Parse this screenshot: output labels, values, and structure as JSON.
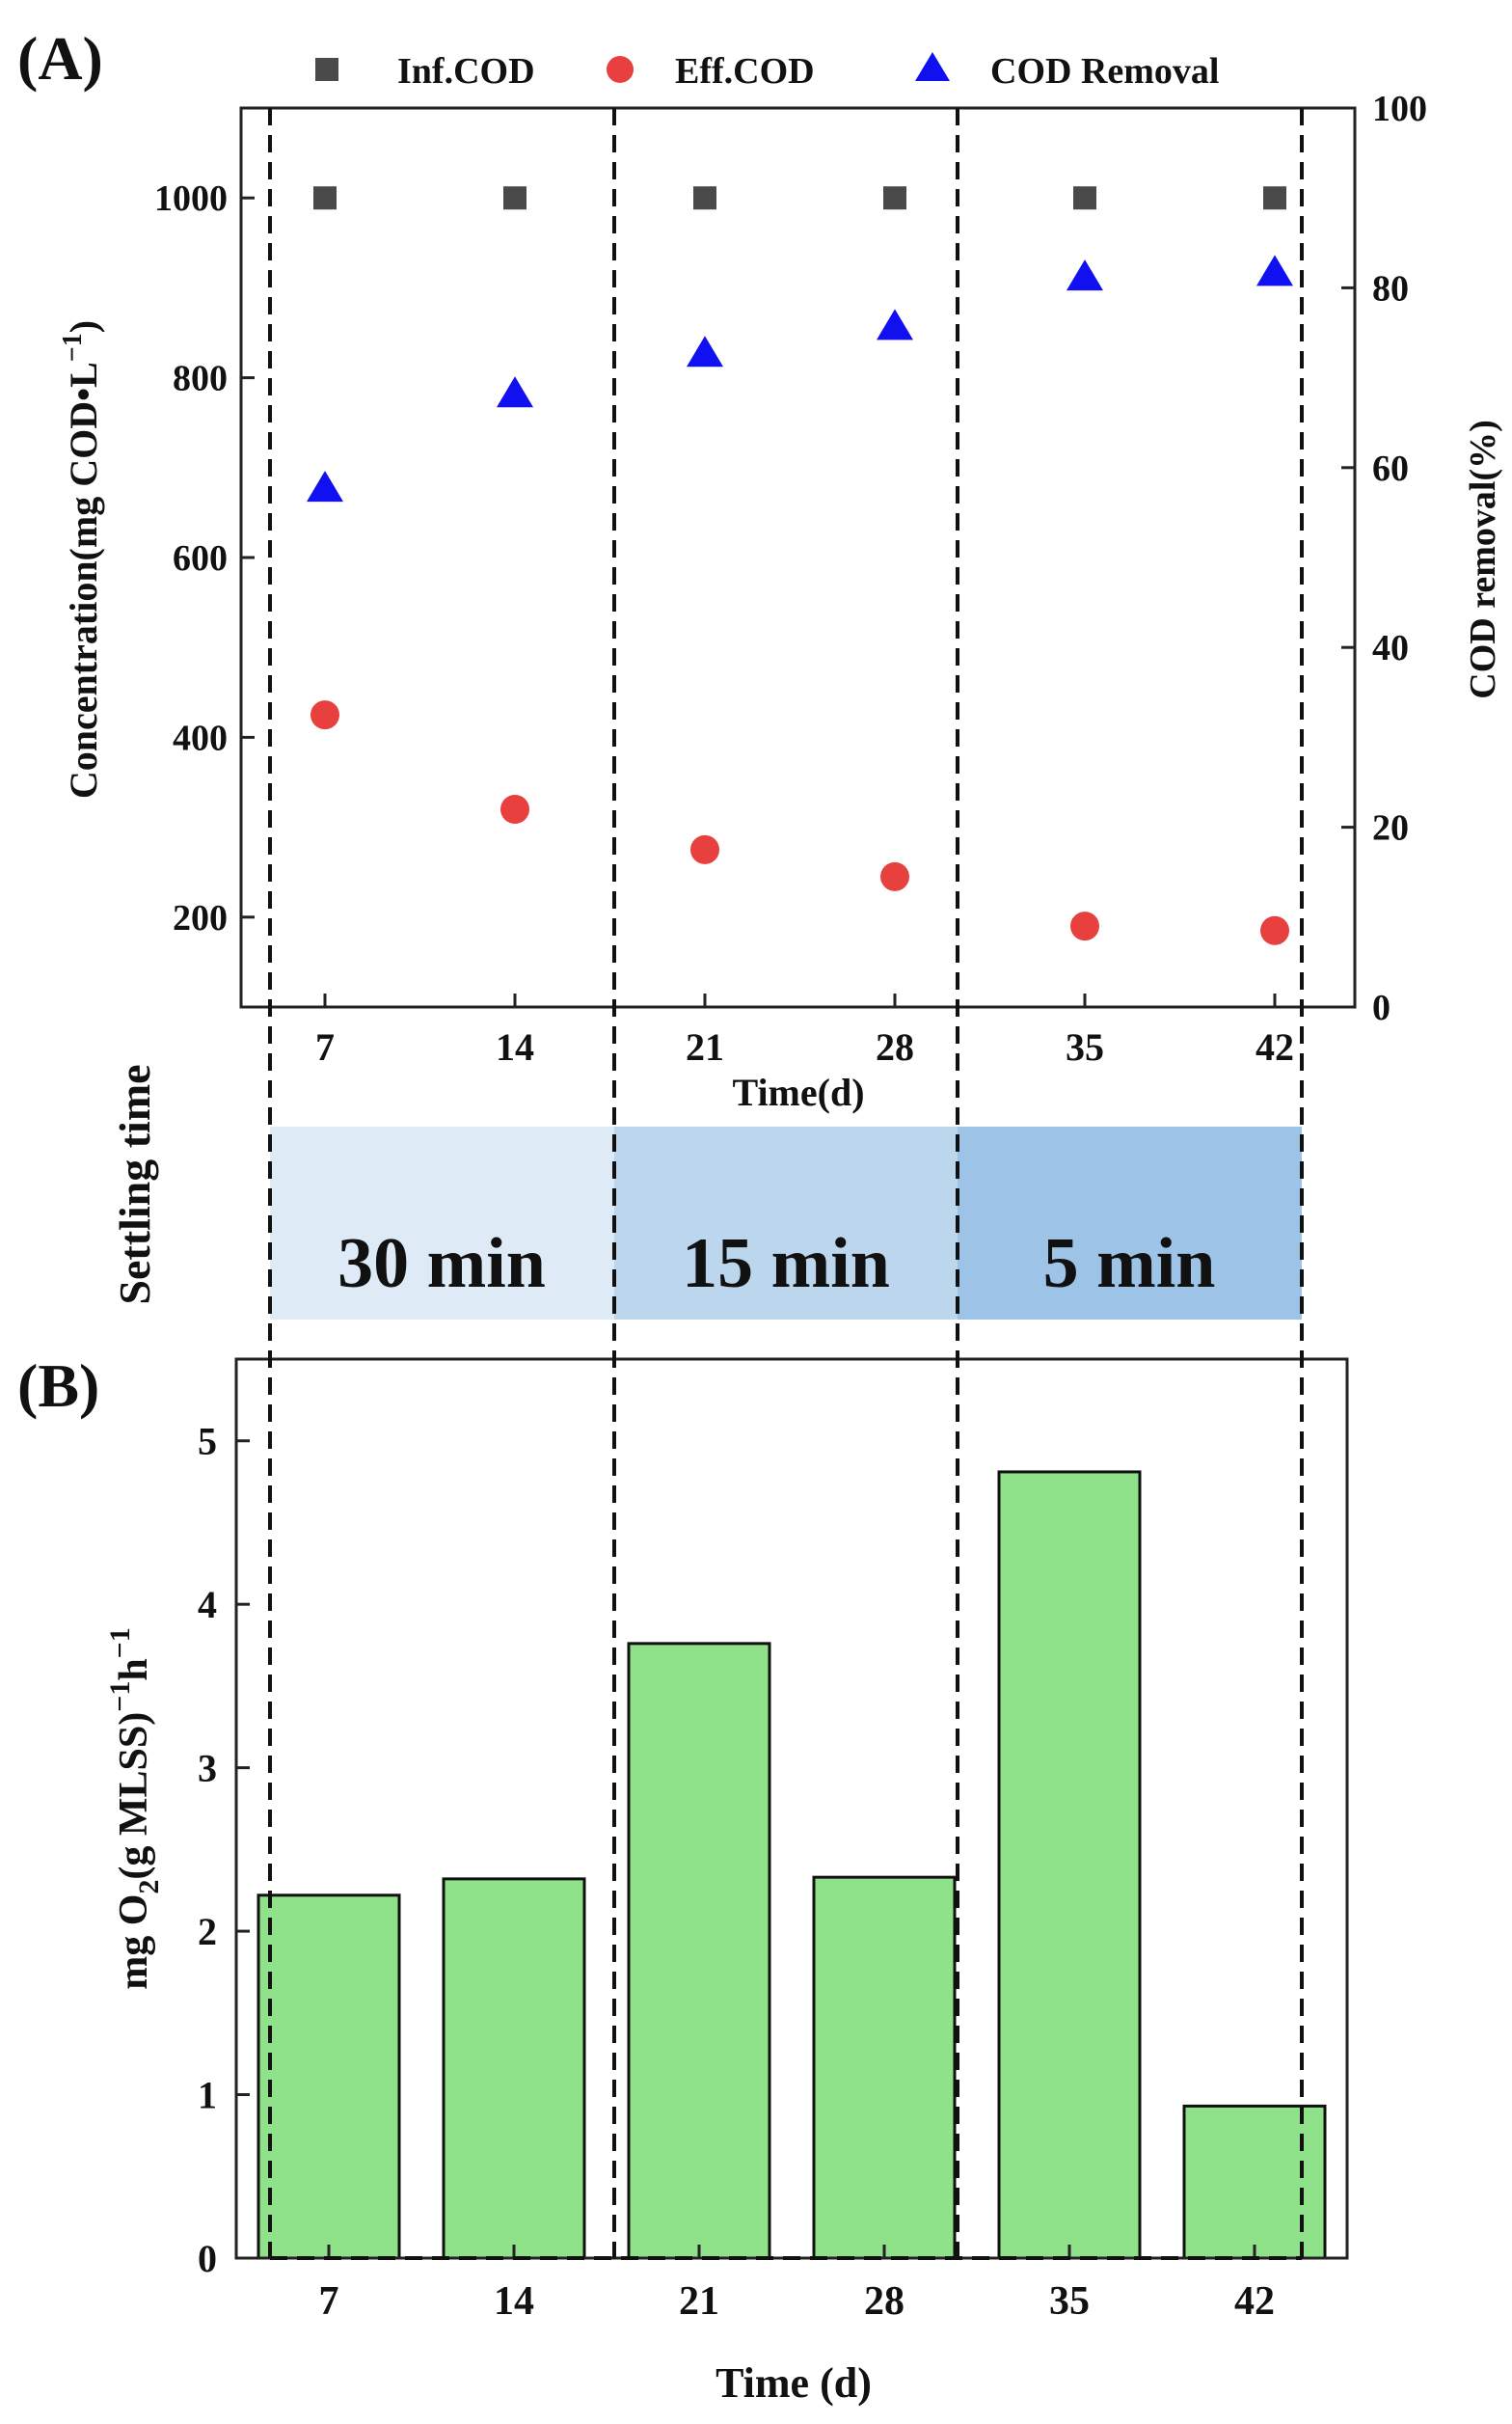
{
  "colors": {
    "inf": "#4a4a4a",
    "eff": "#e8403f",
    "removal": "#1010f0",
    "bar": "#90e28a",
    "band1": "#deebf7",
    "band2": "#bcd6ee",
    "band3": "#9dc3e6"
  },
  "panelA": {
    "label": "(A)",
    "xlabel": "Time(d)",
    "ylabel_left": "Concentration(mg COD•L",
    "ylabel_left_sup": "−1",
    "ylabel_left_end": ")",
    "ylabel_right": "COD removal(%)",
    "legend": {
      "inf": "Inf.COD",
      "eff": "Eff.COD",
      "removal": "COD Removal"
    },
    "x_ticks": [
      "7",
      "14",
      "21",
      "28",
      "35",
      "42"
    ],
    "y_left_ticks": [
      "200",
      "400",
      "600",
      "800",
      "1000"
    ],
    "y_right_ticks": [
      "0",
      "20",
      "40",
      "60",
      "80",
      "100"
    ]
  },
  "settling": {
    "label": "Settling time",
    "phases": [
      "30 min",
      "15 min",
      "5 min"
    ]
  },
  "panelB": {
    "label": "(B)",
    "xlabel": "Time (d)",
    "ylabel_main": "mg O",
    "ylabel_sub": "2",
    "ylabel_mid": "(g MLSS)",
    "ylabel_sup1": "−1",
    "ylabel_h": "h",
    "ylabel_sup2": "−1",
    "x_ticks": [
      "7",
      "14",
      "21",
      "28",
      "35",
      "42"
    ],
    "y_ticks": [
      "0",
      "1",
      "2",
      "3",
      "4",
      "5"
    ]
  },
  "chart_data": [
    {
      "type": "scatter",
      "title": "",
      "xlabel": "Time(d)",
      "ylabel": "Concentration(mg COD•L−1)",
      "y2label": "COD removal(%)",
      "x": [
        7,
        14,
        21,
        28,
        35,
        42
      ],
      "ylim": [
        100,
        1100
      ],
      "y2lim": [
        0,
        100
      ],
      "series": [
        {
          "name": "Inf.COD",
          "axis": "left",
          "marker": "square",
          "values": [
            1000,
            1000,
            1000,
            1000,
            1000,
            1000
          ]
        },
        {
          "name": "Eff.COD",
          "axis": "left",
          "marker": "circle",
          "values": [
            425,
            320,
            275,
            245,
            190,
            185
          ]
        },
        {
          "name": "COD Removal",
          "axis": "right",
          "marker": "triangle",
          "values": [
            57.5,
            68,
            72.5,
            75.5,
            81,
            81.5
          ]
        }
      ],
      "legend": "top"
    },
    {
      "type": "bar",
      "title": "",
      "xlabel": "Time (d)",
      "ylabel": "mg O2(g MLSS)−1h−1",
      "categories": [
        "7",
        "14",
        "21",
        "28",
        "35",
        "42"
      ],
      "values": [
        2.22,
        2.32,
        3.76,
        2.33,
        4.81,
        0.93
      ],
      "ylim": [
        0,
        5.5
      ]
    }
  ]
}
